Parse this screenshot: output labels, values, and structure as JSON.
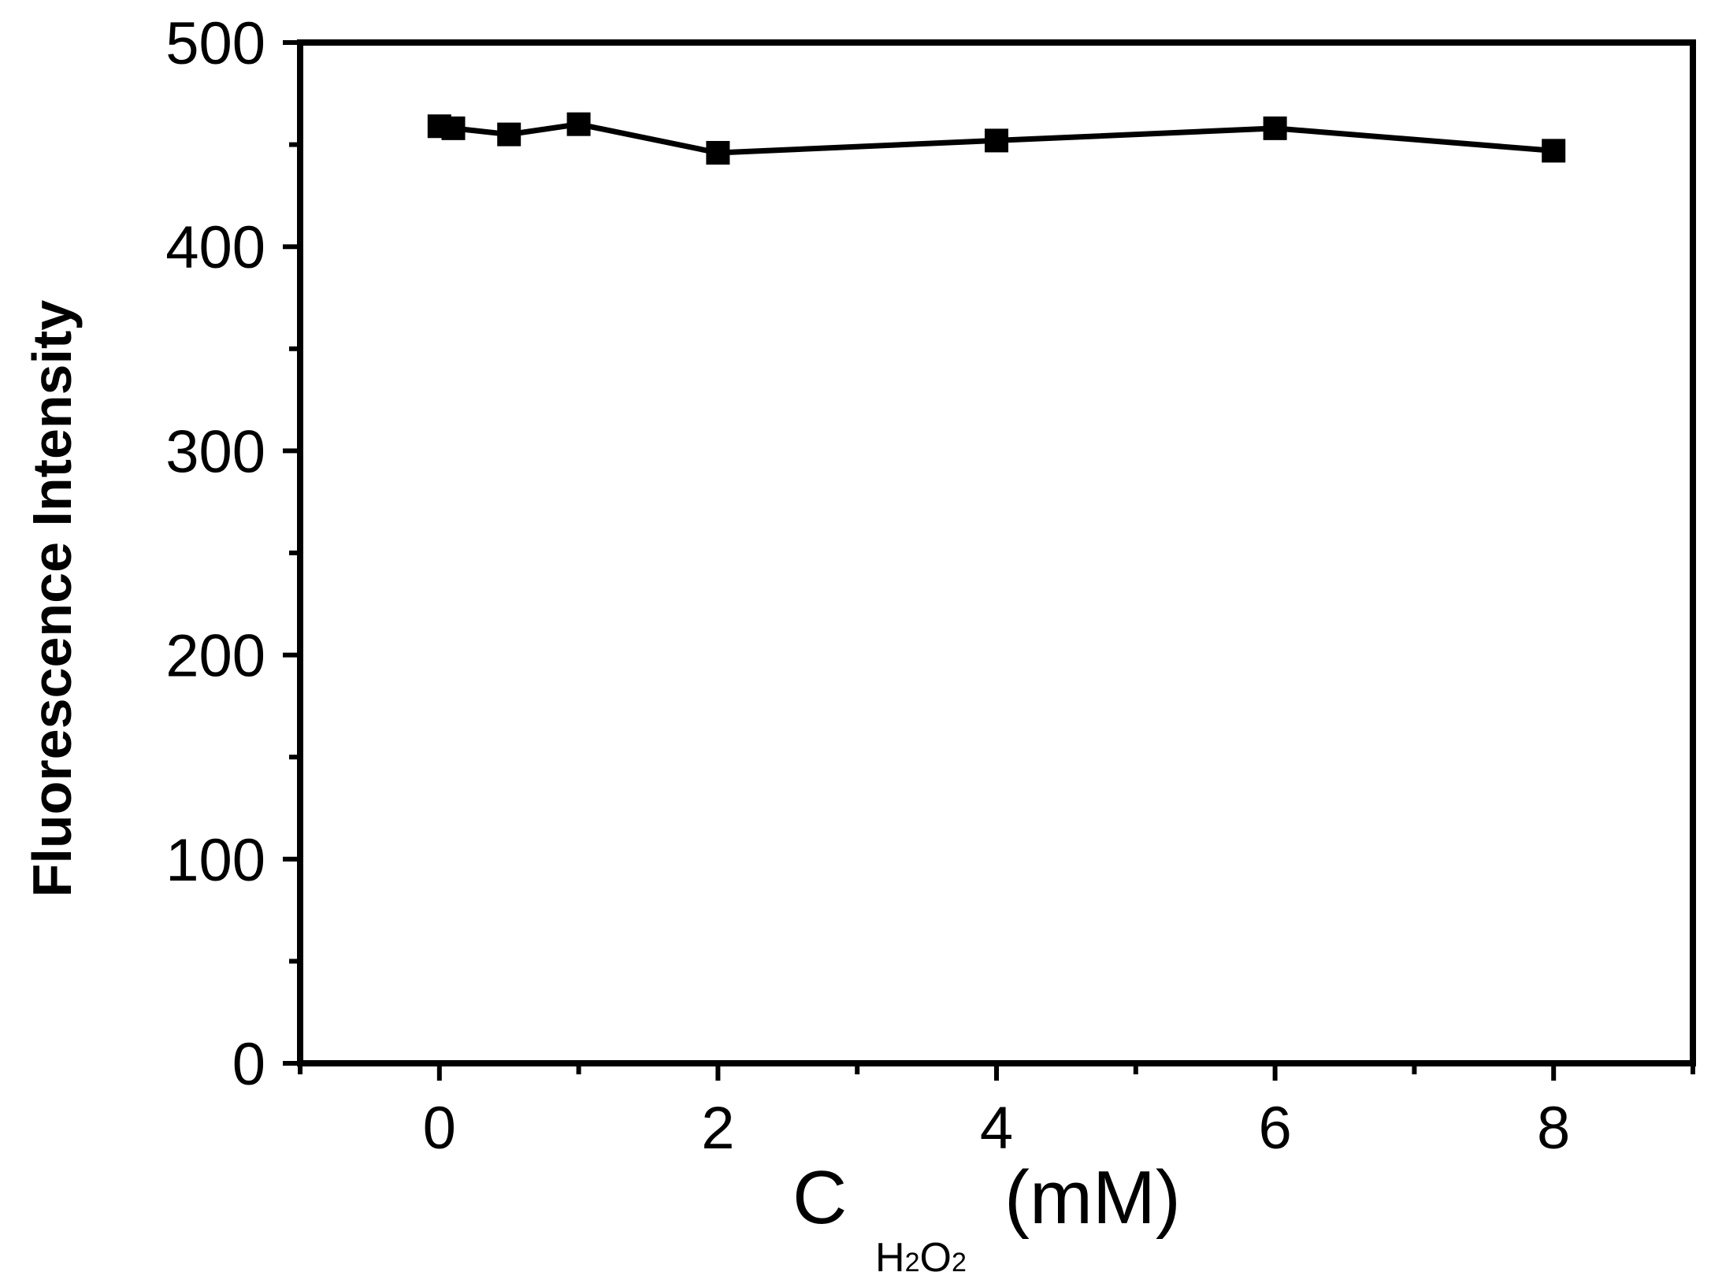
{
  "chart_data": {
    "type": "line",
    "title": "",
    "xlabel": {
      "main": "C",
      "sub_parts": [
        {
          "text": "H",
          "sub": false
        },
        {
          "text": "2",
          "sub": true
        },
        {
          "text": "O",
          "sub": false
        },
        {
          "text": "2",
          "sub": true
        }
      ],
      "unit": "(mM)"
    },
    "ylabel": "Fluorescence Intensity",
    "xlim": [
      -1,
      9
    ],
    "ylim": [
      0,
      500
    ],
    "xticks": [
      0,
      2,
      4,
      6,
      8
    ],
    "yticks": [
      0,
      100,
      200,
      300,
      400,
      500
    ],
    "x_minor_ticks": [
      -1,
      1,
      3,
      5,
      7,
      9
    ],
    "y_minor_ticks": [
      50,
      150,
      250,
      350,
      450
    ],
    "grid": false,
    "legend": "none",
    "series": [
      {
        "marker": "square",
        "color": "#000000",
        "x": [
          0,
          0.1,
          0.5,
          1,
          2,
          4,
          6,
          8
        ],
        "y": [
          459,
          458,
          455,
          460,
          446,
          452,
          458,
          447
        ]
      }
    ]
  }
}
